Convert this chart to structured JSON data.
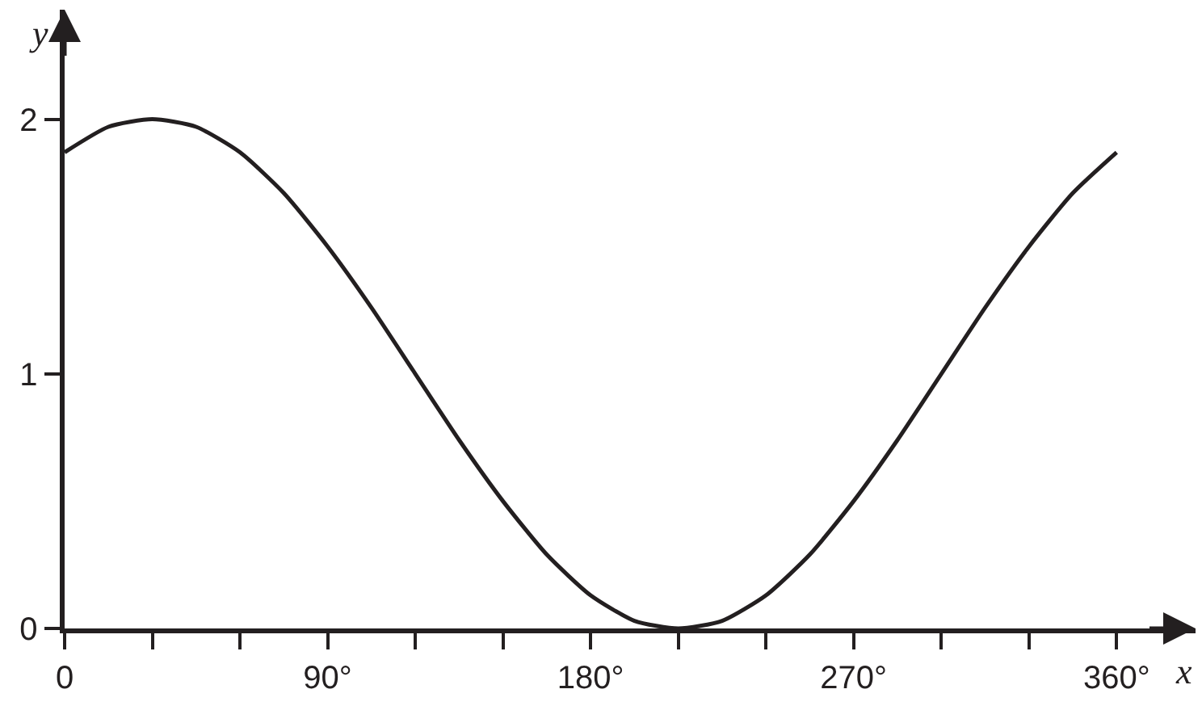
{
  "chart_data": {
    "type": "line",
    "xlabel": "x",
    "ylabel": "y",
    "x": [
      0,
      15,
      30,
      45,
      60,
      75,
      90,
      105,
      120,
      135,
      150,
      165,
      180,
      195,
      210,
      225,
      240,
      255,
      270,
      285,
      300,
      315,
      330,
      345,
      360
    ],
    "series": [
      {
        "color": "#231f20",
        "values": [
          1.87,
          1.97,
          2,
          1.97,
          1.87,
          1.71,
          1.5,
          1.26,
          1,
          0.74,
          0.5,
          0.29,
          0.13,
          0.03,
          0,
          0.03,
          0.13,
          0.29,
          0.5,
          0.74,
          1,
          1.26,
          1.5,
          1.71,
          1.87
        ]
      }
    ],
    "xlim": [
      0,
      387
    ],
    "ylim": [
      0,
      2.43
    ],
    "xticks": [
      {
        "value": 0,
        "label": "0"
      },
      {
        "value": 30,
        "label": null
      },
      {
        "value": 60,
        "label": null
      },
      {
        "value": 90,
        "label": "90°"
      },
      {
        "value": 120,
        "label": null
      },
      {
        "value": 150,
        "label": null
      },
      {
        "value": 180,
        "label": "180°"
      },
      {
        "value": 210,
        "label": null
      },
      {
        "value": 240,
        "label": null
      },
      {
        "value": 270,
        "label": "270°"
      },
      {
        "value": 300,
        "label": null
      },
      {
        "value": 330,
        "label": null
      },
      {
        "value": 360,
        "label": "360°"
      }
    ],
    "yticks": [
      0,
      1,
      2
    ],
    "marker": "none",
    "line_style": "solid"
  }
}
